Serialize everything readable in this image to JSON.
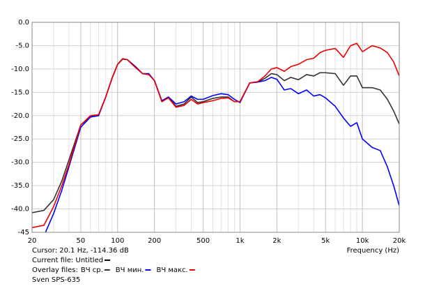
{
  "chart_data": {
    "type": "line",
    "log_x": true,
    "grid": true,
    "x_label": "Frequency (Hz)",
    "cursor": "Cursor: 20.1 Hz, -114.36 dB",
    "current_file": "Current file: Untitled",
    "overlay_label": "Overlay files:",
    "device": "Sven SPS-635",
    "xlim": [
      20,
      20000
    ],
    "xticks": [
      20,
      50,
      100,
      200,
      500,
      {
        "value": 1000,
        "label": "1k"
      },
      {
        "value": 2000,
        "label": "2k"
      },
      {
        "value": 5000,
        "label": "5k"
      },
      {
        "value": 10000,
        "label": "10k"
      },
      {
        "value": 20000,
        "label": "20k"
      }
    ],
    "ylim": [
      -45,
      0
    ],
    "yticks": [
      {
        "value": 0,
        "label": "0.0"
      },
      {
        "value": -5,
        "label": "-5.0"
      },
      {
        "value": -10,
        "label": "-10.0"
      },
      {
        "value": -15,
        "label": "-15.0"
      },
      {
        "value": -20,
        "label": "-20.0"
      },
      {
        "value": -25,
        "label": "-25.0"
      },
      {
        "value": -30,
        "label": "-30.0"
      },
      {
        "value": -35,
        "label": "-35.0"
      },
      {
        "value": -40,
        "label": "-40.0"
      },
      -45
    ],
    "x": [
      20,
      25,
      30,
      35,
      40,
      50,
      60,
      70,
      80,
      90,
      100,
      110,
      120,
      140,
      160,
      180,
      200,
      230,
      260,
      300,
      350,
      400,
      450,
      500,
      600,
      700,
      800,
      900,
      1000,
      1200,
      1400,
      1600,
      1800,
      2000,
      2300,
      2600,
      3000,
      3500,
      4000,
      4500,
      5000,
      6000,
      7000,
      8000,
      9000,
      10000,
      12000,
      14000,
      16000,
      18000,
      20000
    ],
    "series": [
      {
        "name": "ВЧ ср.",
        "color": "#333333",
        "values": [
          -40.8,
          -40.3,
          -38,
          -34,
          -29.5,
          -22,
          -20.3,
          -19.8,
          -16,
          -12,
          -9,
          -7.9,
          -8,
          -9.5,
          -11,
          -11.2,
          -12.5,
          -17,
          -16,
          -18,
          -17.5,
          -16,
          -17.2,
          -17,
          -16.3,
          -16,
          -16,
          -17,
          -17,
          -13,
          -12.8,
          -12,
          -11,
          -11.2,
          -12.5,
          -11.8,
          -12.3,
          -11.2,
          -11.5,
          -10.8,
          -10.8,
          -11,
          -13.5,
          -11.5,
          -11.5,
          -14,
          -14,
          -14.5,
          -16.5,
          -19,
          -21.8
        ]
      },
      {
        "name": "ВЧ мин.",
        "color": "#0000ff",
        "values": [
          null,
          -45.8,
          -41,
          -36,
          -31,
          -22.5,
          -20.3,
          -20,
          -16,
          -12,
          -9,
          -7.8,
          -8,
          -9.5,
          -11,
          -11,
          -12.5,
          -16.8,
          -16,
          -17.5,
          -17,
          -15.8,
          -16.5,
          -16.5,
          -15.7,
          -15.3,
          -15.5,
          -16.5,
          -17.2,
          -13,
          -12.8,
          -12.5,
          -11.8,
          -12.2,
          -14.5,
          -14.2,
          -15.3,
          -14.5,
          -15.8,
          -15.5,
          -16.2,
          -18,
          -20.5,
          -22.3,
          -21.5,
          -25,
          -26.8,
          -27.5,
          -31,
          -35,
          -39.3
        ]
      },
      {
        "name": "ВЧ макс.",
        "color": "#ee0000",
        "values": [
          -44,
          -43.5,
          -39.5,
          -35,
          -30.5,
          -22,
          -20,
          -19.8,
          -16,
          -12,
          -9,
          -7.8,
          -8,
          -9.7,
          -11,
          -11.2,
          -12.5,
          -17,
          -16.2,
          -18.2,
          -17.8,
          -16.5,
          -17.5,
          -17.2,
          -16.8,
          -16.3,
          -16.2,
          -17,
          -17,
          -13,
          -12.7,
          -11.5,
          -10,
          -9.7,
          -10.5,
          -9.5,
          -9,
          -8,
          -7.7,
          -6.5,
          -6,
          -5.6,
          -7.5,
          -5,
          -4.5,
          -6.3,
          -5,
          -5.5,
          -6.5,
          -8.5,
          -11.5
        ]
      }
    ]
  }
}
